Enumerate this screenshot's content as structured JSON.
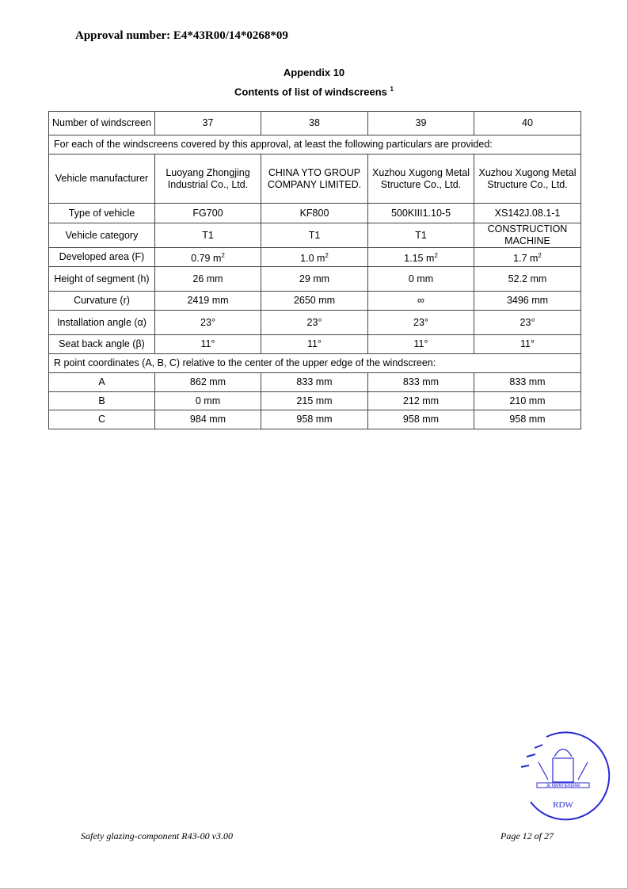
{
  "header": {
    "approval": "Approval number: E4*43R00/14*0268*09"
  },
  "title": "Appendix 10",
  "subtitle": "Contents of list of windscreens",
  "subtitle_footnote": "1",
  "table": {
    "header": [
      "Number of windscreen",
      "37",
      "38",
      "39",
      "40"
    ],
    "intro": "For each of the windscreens covered by this approval, at least the following particulars are provided:",
    "rows": [
      [
        "Vehicle manufacturer",
        "Luoyang Zhongjing Industrial Co., Ltd.",
        "CHINA YTO GROUP COMPANY LIMITED.",
        "Xuzhou Xugong Metal Structure Co., Ltd.",
        "Xuzhou Xugong Metal Structure Co., Ltd."
      ],
      [
        "Type of vehicle",
        "FG700",
        "KF800",
        "500KIII1.10-5",
        "XS142J.08.1-1"
      ],
      [
        "Vehicle category",
        "T1",
        "T1",
        "T1",
        "CONSTRUCTION MACHINE"
      ],
      [
        "Developed area (F)",
        "0.79 m",
        "1.0 m",
        "1.15 m",
        "1.7 m"
      ],
      [
        "Height of segment (h)",
        "26 mm",
        "29 mm",
        "0 mm",
        "52.2 mm"
      ],
      [
        "Curvature (r)",
        "2419 mm",
        "2650 mm",
        "∞",
        "3496 mm"
      ],
      [
        "Installation angle (α)",
        "23°",
        "23°",
        "23°",
        "23°"
      ],
      [
        "Seat back angle (β)",
        "11°",
        "11°",
        "11°",
        "11°"
      ]
    ],
    "area_unit_sup": "2",
    "rpoint_intro": "R point coordinates (A, B, C) relative to the center of the upper edge of the windscreen:",
    "rpoint_rows": [
      [
        "A",
        "862 mm",
        "833 mm",
        "833 mm",
        "833 mm"
      ],
      [
        "B",
        "0 mm",
        "215 mm",
        "212 mm",
        "210 mm"
      ],
      [
        "C",
        "984 mm",
        "958 mm",
        "958 mm",
        "958 mm"
      ]
    ]
  },
  "stamp": {
    "motto": "JE MAINTIENDRAI",
    "org": "RDW",
    "color": "#2b2bd6"
  },
  "footer": {
    "left": "Safety glazing-component R43-00 v3.00",
    "right": "Page 12 of 27"
  }
}
